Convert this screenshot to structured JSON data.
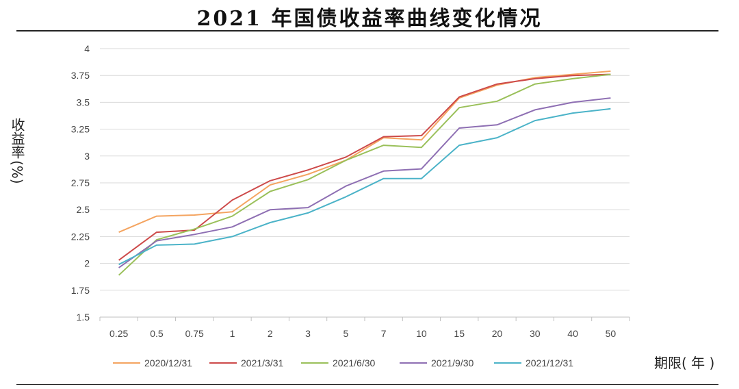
{
  "chart_data": {
    "type": "line",
    "title": "2021 年国债收益率曲线变化情况",
    "ylabel": "收益率",
    "ylabel_unit": "(%)",
    "xlabel": "期限( 年 )",
    "ylim": [
      1.5,
      4
    ],
    "yticks": [
      "1.5",
      "1.75",
      "2",
      "2.25",
      "2.5",
      "2.75",
      "3",
      "3.25",
      "3.5",
      "3.75",
      "4"
    ],
    "grid": true,
    "legend_position": "bottom",
    "categories": [
      "0.25",
      "0.5",
      "0.75",
      "1",
      "2",
      "3",
      "5",
      "7",
      "10",
      "15",
      "20",
      "30",
      "40",
      "50"
    ],
    "series": [
      {
        "name": "2020/12/31",
        "color": "#f4a460",
        "values": [
          2.29,
          2.44,
          2.45,
          2.48,
          2.73,
          2.83,
          2.96,
          3.17,
          3.15,
          3.54,
          3.66,
          3.73,
          3.76,
          3.79
        ]
      },
      {
        "name": "2021/3/31",
        "color": "#cd4a4a",
        "values": [
          2.03,
          2.29,
          2.31,
          2.59,
          2.77,
          2.87,
          2.99,
          3.18,
          3.19,
          3.55,
          3.67,
          3.72,
          3.75,
          3.76
        ]
      },
      {
        "name": "2021/6/30",
        "color": "#9ac05a",
        "values": [
          1.89,
          2.22,
          2.32,
          2.44,
          2.67,
          2.78,
          2.96,
          3.1,
          3.08,
          3.45,
          3.51,
          3.67,
          3.72,
          3.76
        ]
      },
      {
        "name": "2021/9/30",
        "color": "#8e6fb3",
        "values": [
          1.96,
          2.21,
          2.27,
          2.34,
          2.5,
          2.52,
          2.72,
          2.86,
          2.88,
          3.26,
          3.29,
          3.43,
          3.5,
          3.54
        ]
      },
      {
        "name": "2021/12/31",
        "color": "#4bb3c8",
        "values": [
          1.99,
          2.17,
          2.18,
          2.25,
          2.38,
          2.47,
          2.62,
          2.79,
          2.79,
          3.1,
          3.17,
          3.33,
          3.4,
          3.44
        ]
      }
    ]
  }
}
